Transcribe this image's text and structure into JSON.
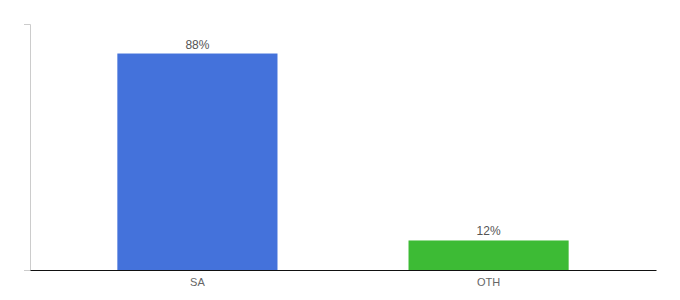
{
  "chart_data": {
    "type": "bar",
    "categories": [
      "SA",
      "OTH"
    ],
    "values": [
      88,
      12
    ],
    "colors": [
      "#4472db",
      "#3dbb35"
    ],
    "ylim": [
      0,
      100
    ],
    "grid": false,
    "tick_labels": "x",
    "data_labels": true,
    "value_labels": [
      "88%",
      "12%"
    ]
  }
}
